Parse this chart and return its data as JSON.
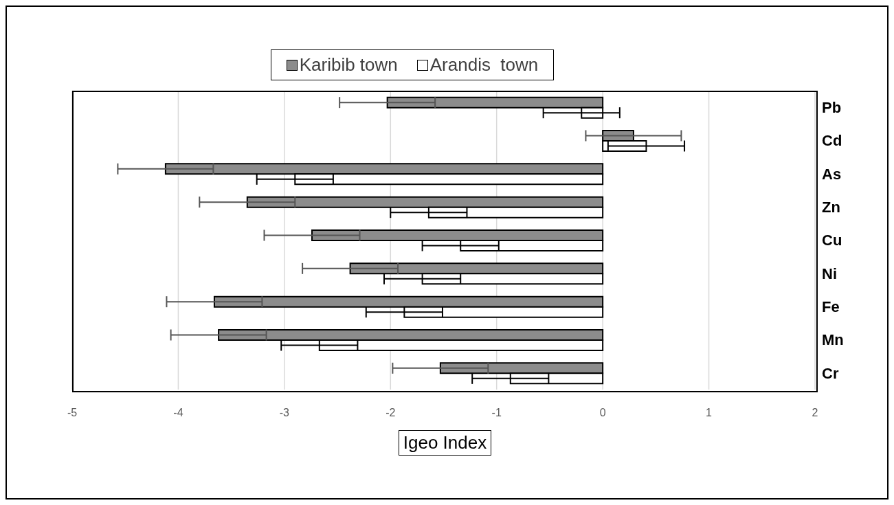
{
  "chart_data": {
    "type": "bar",
    "orientation": "horizontal",
    "xlabel": "Igeo Index",
    "categories": [
      "Pb",
      "Cd",
      "As",
      "Zn",
      "Cu",
      "Ni",
      "Fe",
      "Mn",
      "Cr"
    ],
    "series": [
      {
        "name": "Karibib town",
        "color": "#8c8c8c",
        "values": [
          -2.03,
          0.29,
          -4.12,
          -3.35,
          -2.74,
          -2.38,
          -3.66,
          -3.62,
          -1.53
        ],
        "errors": [
          0.45,
          0.45,
          0.45,
          0.45,
          0.45,
          0.45,
          0.45,
          0.45,
          0.45
        ]
      },
      {
        "name": "Arandis  town",
        "color": "#ffffff",
        "values": [
          -0.2,
          0.41,
          -2.9,
          -1.64,
          -1.34,
          -1.7,
          -1.87,
          -2.67,
          -0.87
        ],
        "errors": [
          0.36,
          0.36,
          0.36,
          0.36,
          0.36,
          0.36,
          0.36,
          0.36,
          0.36
        ]
      }
    ],
    "xlim": [
      -5,
      2
    ],
    "xticks": [
      -5,
      -4,
      -3,
      -2,
      -1,
      0,
      1,
      2
    ],
    "grid": "x",
    "legend": "top"
  }
}
